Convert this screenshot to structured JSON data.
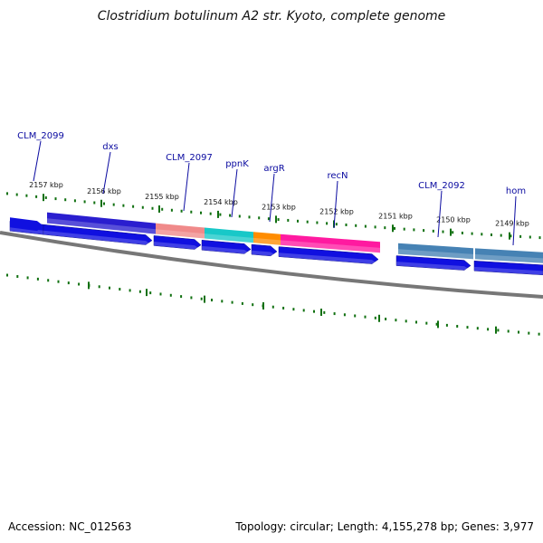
{
  "title": "Clostridium botulinum A2 str. Kyoto, complete genome",
  "footer": {
    "accession": "Accession: NC_012563",
    "summary": "Topology: circular; Length: 4,155,278 bp; Genes: 3,977"
  },
  "colors": {
    "backbone": "#777777",
    "tick": "#107010",
    "cds": "#1010e0",
    "label": "#0a0aa0"
  },
  "ticks": [
    "2157 kbp",
    "2156 kbp",
    "2155 kbp",
    "2154 kbp",
    "2153 kbp",
    "2152 kbp",
    "2151 kbp",
    "2150 kbp",
    "2149 kbp"
  ],
  "gene_labels": [
    "CLM_2099",
    "dxs",
    "CLM_2097",
    "ppnK",
    "argR",
    "recN",
    "CLM_2092",
    "hom"
  ],
  "feature_blocks": [
    {
      "name": "dxs",
      "color": "#2a1ecf"
    },
    {
      "name": "CLM_2097",
      "color": "#f08a8a"
    },
    {
      "name": "ppnK",
      "color": "#18c8c8"
    },
    {
      "name": "argR",
      "color": "#ff8c00"
    },
    {
      "name": "recN",
      "color": "#ff1aa0"
    },
    {
      "name": "CLM_2092",
      "color": "#4682b4"
    },
    {
      "name": "hom",
      "color": "#4682b4"
    }
  ]
}
